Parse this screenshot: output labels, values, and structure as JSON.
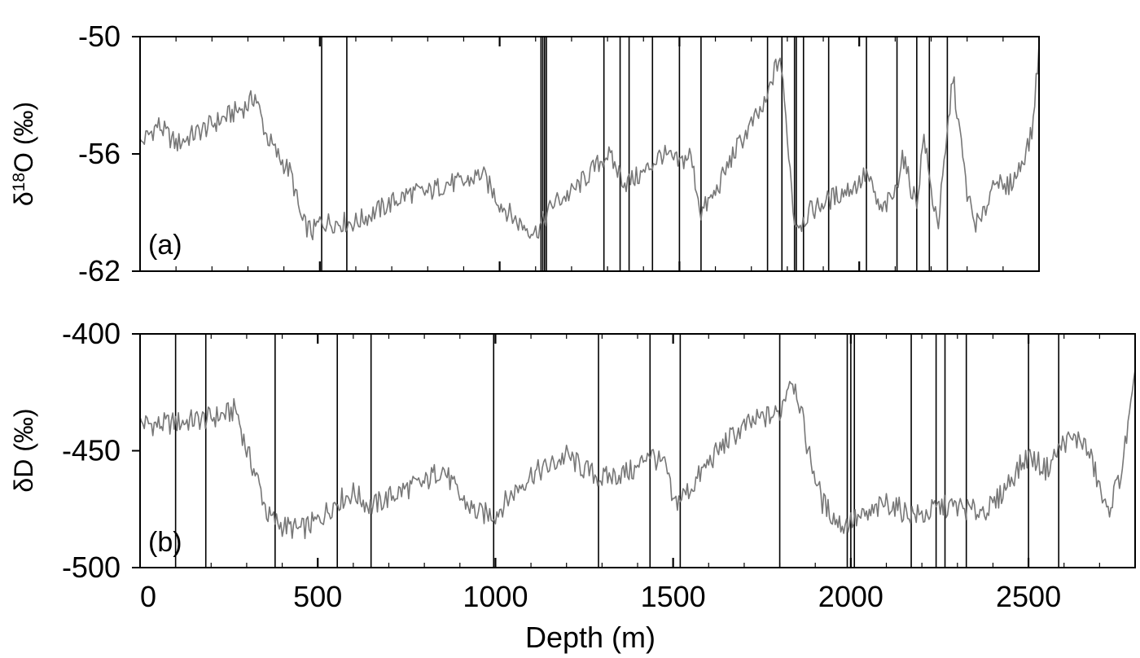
{
  "chart_data": [
    {
      "type": "line",
      "panel_label": "(a)",
      "ylabel": "δ18O (‰)",
      "ylabel_main": "δ",
      "ylabel_sup": "18",
      "ylabel_rest": "O (‰)",
      "xlim": [
        0,
        2500
      ],
      "ylim": [
        -62,
        -50
      ],
      "yticks": [
        -50,
        -56,
        -62
      ],
      "ytick_labels": [
        "-50",
        "-56",
        "-62"
      ],
      "xticks": [
        500,
        1000,
        1500,
        2000
      ],
      "grid": false,
      "colors": {
        "line": "#777777",
        "marker": "#000000",
        "frame": "#000000"
      },
      "series": [
        {
          "x": [
            0,
            50,
            100,
            150,
            200,
            250,
            300,
            320,
            350,
            380,
            420,
            450,
            480,
            500,
            550,
            600,
            650,
            700,
            750,
            800,
            850,
            900,
            950,
            1000,
            1050,
            1100,
            1120,
            1150,
            1200,
            1250,
            1300,
            1350,
            1400,
            1450,
            1500,
            1530,
            1560,
            1600,
            1650,
            1700,
            1740,
            1760,
            1780,
            1800,
            1820,
            1840,
            1860,
            1900,
            1950,
            2000,
            2020,
            2060,
            2100,
            2120,
            2140,
            2160,
            2180,
            2200,
            2220,
            2240,
            2260,
            2280,
            2300,
            2320,
            2340,
            2380,
            2400,
            2440,
            2460,
            2480,
            2500
          ],
          "y": [
            -55.5,
            -54.5,
            -55.5,
            -55,
            -54.5,
            -54,
            -53.5,
            -53,
            -55,
            -56,
            -57,
            -59.5,
            -60,
            -59.5,
            -59.5,
            -59.5,
            -59,
            -58.5,
            -58,
            -58,
            -57.5,
            -57.5,
            -57,
            -58.5,
            -59.5,
            -60,
            -59.5,
            -58.5,
            -58,
            -57,
            -56,
            -57.5,
            -57,
            -56,
            -56.5,
            -56,
            -59,
            -58,
            -56,
            -54.5,
            -53.5,
            -52,
            -51,
            -55,
            -59.5,
            -59.5,
            -59,
            -58.5,
            -58,
            -57.5,
            -57,
            -59,
            -58,
            -56,
            -57.5,
            -58.5,
            -55,
            -58,
            -59.5,
            -56,
            -52,
            -55,
            -58,
            -59.5,
            -59.5,
            -57,
            -58,
            -57,
            -56,
            -55,
            -50.5
          ]
        }
      ],
      "marker_depths": [
        505,
        575,
        1115,
        1120,
        1125,
        1130,
        1290,
        1335,
        1360,
        1425,
        1500,
        1560,
        1745,
        1785,
        1820,
        1825,
        1845,
        1915,
        2020,
        2105,
        2160,
        2195,
        2245
      ]
    },
    {
      "type": "line",
      "panel_label": "(b)",
      "ylabel": "δD (‰)",
      "xlabel": "Depth (m)",
      "xlim": [
        0,
        2800
      ],
      "ylim": [
        -500,
        -400
      ],
      "yticks": [
        -400,
        -450,
        -500
      ],
      "ytick_labels": [
        "-400",
        "-450",
        "-500"
      ],
      "xticks": [
        0,
        500,
        1000,
        1500,
        2000,
        2500
      ],
      "xtick_labels": [
        "0",
        "500",
        "1000",
        "1500",
        "2000",
        "2500"
      ],
      "grid": false,
      "colors": {
        "line": "#777777",
        "marker": "#000000",
        "frame": "#000000"
      },
      "series": [
        {
          "x": [
            0,
            50,
            100,
            150,
            200,
            250,
            270,
            300,
            330,
            360,
            400,
            450,
            500,
            550,
            600,
            650,
            700,
            750,
            800,
            850,
            900,
            950,
            1000,
            1050,
            1100,
            1150,
            1200,
            1250,
            1300,
            1350,
            1400,
            1430,
            1460,
            1480,
            1500,
            1550,
            1600,
            1650,
            1700,
            1750,
            1800,
            1830,
            1850,
            1880,
            1920,
            1960,
            1980,
            2000,
            2050,
            2100,
            2150,
            2200,
            2250,
            2300,
            2350,
            2400,
            2450,
            2500,
            2550,
            2600,
            2650,
            2680,
            2720,
            2760,
            2800
          ],
          "y": [
            -438,
            -439,
            -438,
            -437,
            -436,
            -434,
            -432,
            -450,
            -462,
            -478,
            -482,
            -484,
            -480,
            -472,
            -468,
            -474,
            -470,
            -466,
            -464,
            -457,
            -470,
            -477,
            -477,
            -468,
            -460,
            -457,
            -452,
            -458,
            -462,
            -460,
            -458,
            -450,
            -455,
            -457,
            -473,
            -466,
            -455,
            -446,
            -440,
            -436,
            -434,
            -418,
            -425,
            -450,
            -472,
            -480,
            -482,
            -480,
            -478,
            -472,
            -476,
            -478,
            -474,
            -474,
            -476,
            -474,
            -462,
            -452,
            -458,
            -446,
            -445,
            -455,
            -477,
            -460,
            -420
          ]
        }
      ],
      "marker_depths": [
        100,
        185,
        380,
        555,
        650,
        995,
        1290,
        1435,
        1520,
        1800,
        1990,
        2000,
        2010,
        2170,
        2240,
        2265,
        2325,
        2500,
        2585
      ]
    }
  ]
}
